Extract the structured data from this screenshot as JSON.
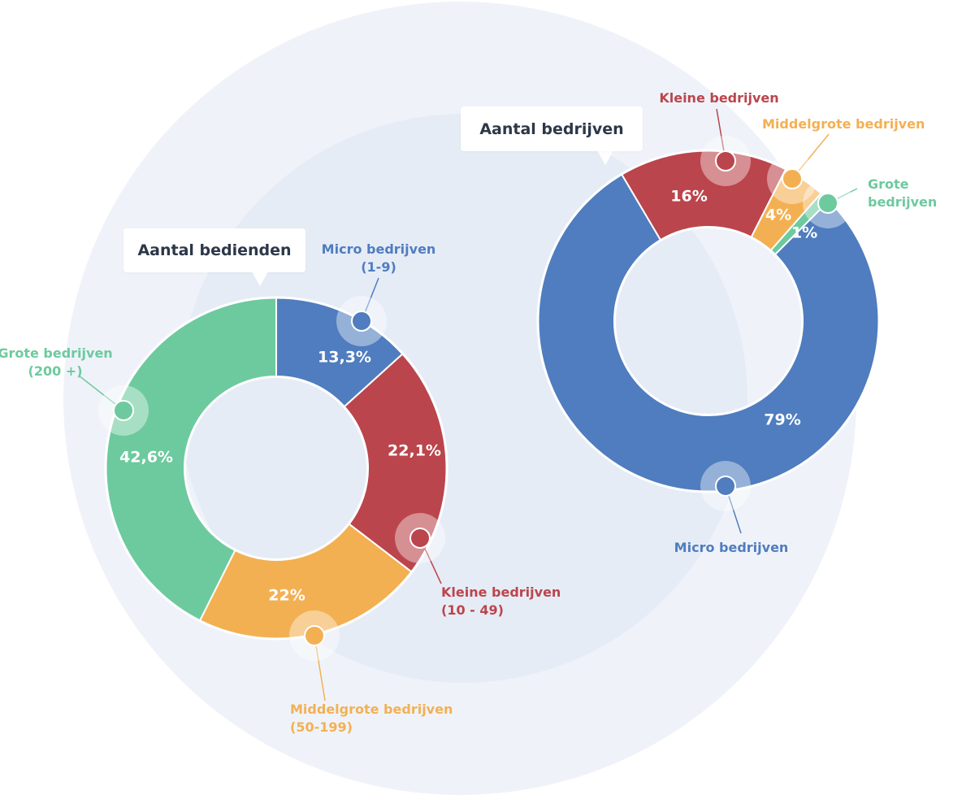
{
  "chart_data": [
    {
      "type": "pie",
      "title": "Aantal bedienden",
      "categories": [
        "Micro bedrijven\n(1-9)",
        "Kleine bedrijven\n(10 - 49)",
        "Middelgrote bedrijven\n(50-199)",
        "Grote bedrijven\n(200 +)"
      ],
      "values": [
        13.3,
        22.1,
        22,
        42.6
      ],
      "value_labels": [
        "13,3%",
        "22,1%",
        "22%",
        "42,6%"
      ],
      "colors": [
        "#4f7dbf",
        "#bb454c",
        "#f3b053",
        "#6dca9e"
      ]
    },
    {
      "type": "pie",
      "title": "Aantal bedrijven",
      "categories": [
        "Micro bedrijven",
        "Kleine bedrijven",
        "Middelgrote bedrijven",
        "Grote bedrijven"
      ],
      "values": [
        79,
        16,
        4,
        1
      ],
      "value_labels": [
        "79%",
        "16%",
        "4%",
        "1%"
      ],
      "colors": [
        "#4f7dbf",
        "#bb454c",
        "#f3b053",
        "#6dca9e"
      ]
    }
  ]
}
